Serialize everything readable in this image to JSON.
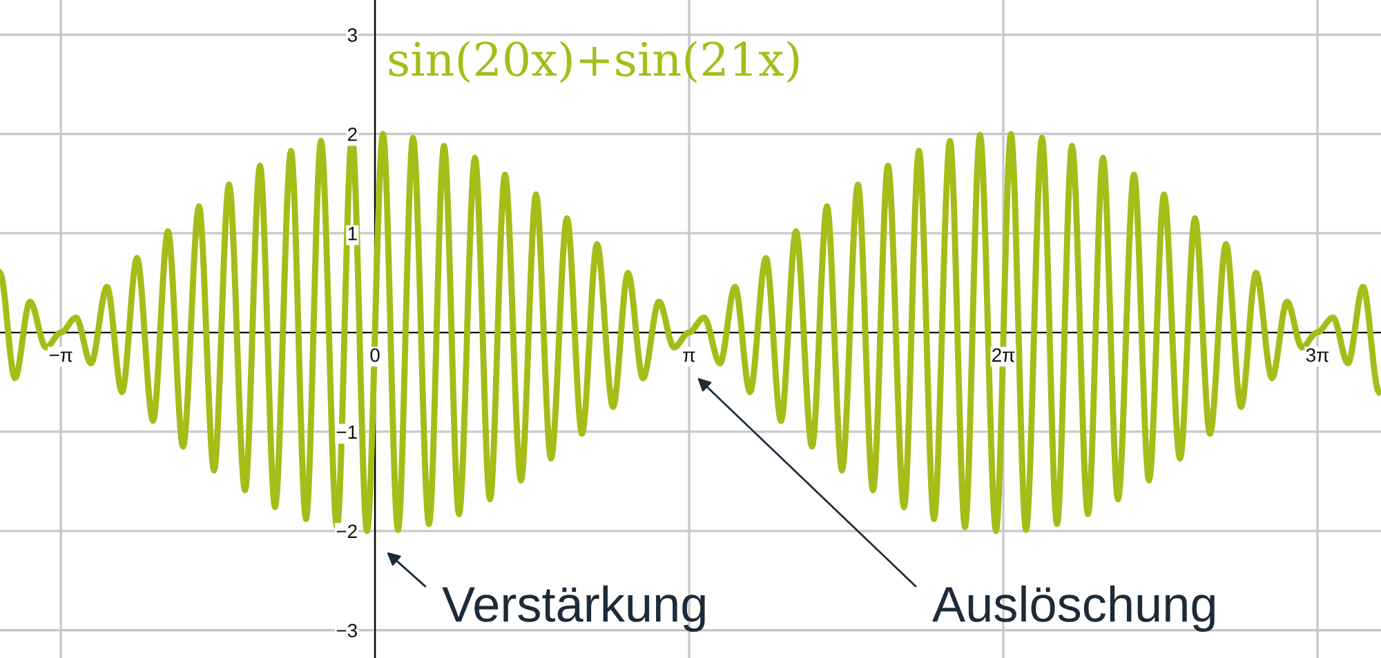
{
  "chart_data": {
    "type": "line",
    "x": [
      -3.75,
      -3.6,
      -3.45,
      -3.29,
      -3.14,
      -2.99,
      -2.84,
      -2.68,
      -2.53,
      -2.38,
      -2.22,
      -2.07,
      -1.92,
      -1.76,
      -1.61,
      -1.46,
      -1.3,
      -1.15,
      -1.0,
      -0.84,
      -0.69,
      -0.54,
      -0.38,
      -0.23,
      -0.08,
      0.08,
      0.23,
      0.38,
      0.54,
      0.69,
      0.84,
      1.0,
      1.15,
      1.3,
      1.46,
      1.61,
      1.76,
      1.92,
      2.07,
      2.22,
      2.38,
      2.53,
      2.68,
      2.84,
      2.99,
      3.14,
      3.29,
      3.45,
      3.6,
      3.75,
      3.91,
      4.06,
      4.21,
      4.37,
      4.52,
      4.67,
      4.83,
      4.98,
      5.13,
      5.29,
      5.44,
      5.59,
      5.75,
      5.9,
      6.05,
      6.21,
      6.36,
      6.51,
      6.67,
      6.82,
      6.97,
      7.13,
      7.28,
      7.43,
      7.59,
      7.74,
      7.89,
      8.05,
      8.2,
      8.35,
      8.51,
      8.66,
      8.81,
      8.97,
      9.12,
      9.27,
      9.42,
      9.58,
      9.73,
      9.88,
      10.04
    ],
    "series": [
      {
        "name": "sin(20x)+sin(21x)",
        "color": "#a6bc18",
        "values": [
          0.6,
          -0.46,
          0.31,
          -0.15,
          0.0,
          0.15,
          -0.31,
          0.46,
          -0.6,
          0.75,
          -0.89,
          1.02,
          -1.15,
          1.27,
          -1.39,
          1.49,
          -1.59,
          1.68,
          -1.76,
          1.83,
          -1.88,
          1.93,
          -1.96,
          1.99,
          -2.0,
          2.0,
          -1.99,
          1.96,
          -1.93,
          1.88,
          -1.83,
          1.76,
          -1.68,
          1.59,
          -1.49,
          1.39,
          -1.27,
          1.15,
          -1.02,
          0.89,
          -0.75,
          0.6,
          -0.46,
          0.31,
          -0.15,
          0.0,
          0.15,
          -0.31,
          0.46,
          -0.6,
          0.75,
          -0.89,
          1.02,
          -1.15,
          1.27,
          -1.39,
          1.49,
          -1.59,
          1.68,
          -1.76,
          1.83,
          -1.88,
          1.93,
          -1.96,
          1.99,
          -2.0,
          2.0,
          -1.99,
          1.96,
          -1.93,
          1.88,
          -1.83,
          1.76,
          -1.68,
          1.59,
          -1.49,
          1.39,
          -1.27,
          1.15,
          -1.02,
          0.89,
          -0.75,
          0.6,
          -0.46,
          0.31,
          -0.15,
          0.0,
          0.15,
          -0.31,
          0.46,
          -0.6
        ]
      }
    ],
    "xlim": [
      -3.75,
      10.06
    ],
    "ylim": [
      -3.28,
      3.35
    ],
    "xticks": [
      {
        "value": -3.14159,
        "label": "−π"
      },
      0,
      {
        "value": 3.14159,
        "label": "π"
      },
      {
        "value": 6.28319,
        "label": "2π"
      },
      {
        "value": 9.42478,
        "label": "3π"
      }
    ],
    "yticks": [
      {
        "value": -3,
        "label": "−3"
      },
      {
        "value": -2,
        "label": "−2"
      },
      {
        "value": -1,
        "label": "−1"
      },
      1,
      2,
      3
    ],
    "grid": true,
    "marker": "none",
    "line_style": "solid",
    "annotations": [
      "Verstärkung",
      "Auslöschung"
    ]
  }
}
